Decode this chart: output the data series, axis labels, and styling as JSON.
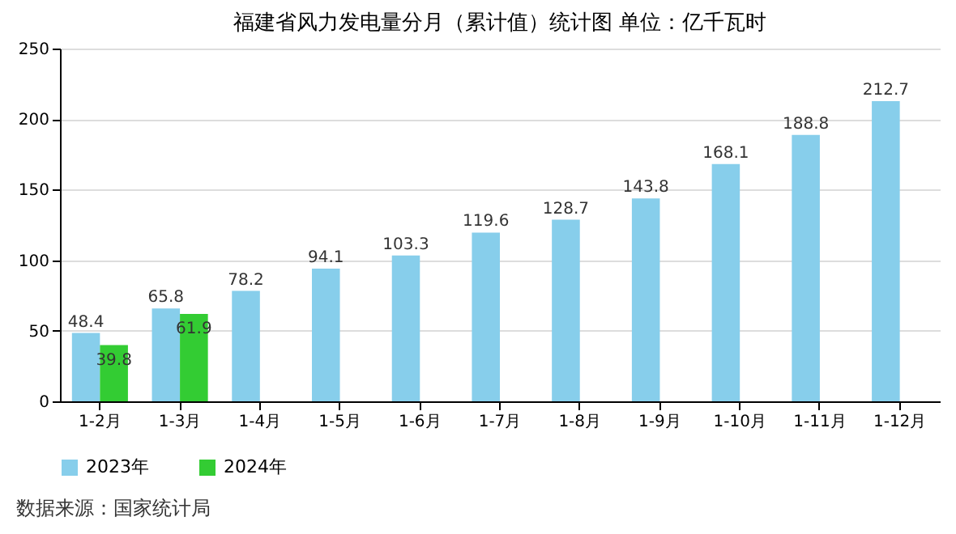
{
  "chart_data": {
    "type": "bar",
    "title": "福建省风力发电量分月（累计值）统计图 单位：亿千瓦时",
    "categories": [
      "1-2月",
      "1-3月",
      "1-4月",
      "1-5月",
      "1-6月",
      "1-7月",
      "1-8月",
      "1-9月",
      "1-10月",
      "1-11月",
      "1-12月"
    ],
    "series": [
      {
        "name": "2023年",
        "color": "#87ceeb",
        "values": [
          48.4,
          65.8,
          78.2,
          94.1,
          103.3,
          119.6,
          128.7,
          143.8,
          168.1,
          188.8,
          212.7
        ]
      },
      {
        "name": "2024年",
        "color": "#33cc33",
        "values": [
          39.8,
          61.9,
          null,
          null,
          null,
          null,
          null,
          null,
          null,
          null,
          null
        ]
      }
    ],
    "ylim": [
      0,
      250
    ],
    "yticks": [
      0,
      50,
      100,
      150,
      200,
      250
    ],
    "grid": "y",
    "legend": "bottom",
    "data_labels": true,
    "annotations": [
      "数据来源：国家统计局"
    ]
  }
}
